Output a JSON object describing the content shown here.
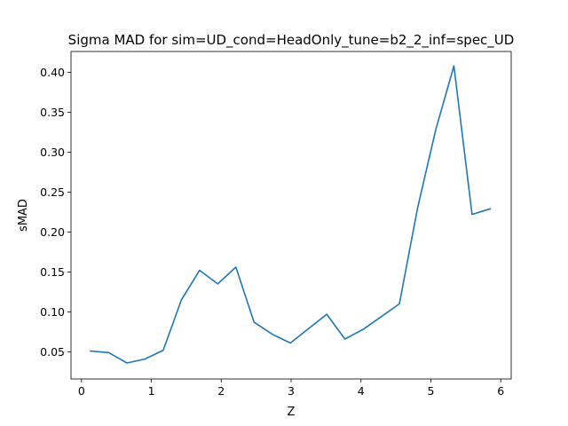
{
  "chart_data": {
    "type": "line",
    "title": "Sigma MAD for sim=UD_cond=HeadOnly_tune=b2_2_inf=spec_UD",
    "xlabel": "Z",
    "ylabel": "sMAD",
    "xlim": [
      -0.15,
      6.15
    ],
    "ylim": [
      0.016,
      0.426
    ],
    "grid": false,
    "xticks": [
      0,
      1,
      2,
      3,
      4,
      5,
      6
    ],
    "yticks": [
      0.05,
      0.1,
      0.15,
      0.2,
      0.25,
      0.3,
      0.35,
      0.4
    ],
    "xtick_labels": [
      "0",
      "1",
      "2",
      "3",
      "4",
      "5",
      "6"
    ],
    "ytick_labels": [
      "0.05",
      "0.10",
      "0.15",
      "0.20",
      "0.25",
      "0.30",
      "0.35",
      "0.40"
    ],
    "series": [
      {
        "color": "#1f77b4",
        "x": [
          0.13,
          0.39,
          0.65,
          0.91,
          1.17,
          1.43,
          1.69,
          1.95,
          2.21,
          2.47,
          2.73,
          2.99,
          3.25,
          3.51,
          3.77,
          4.03,
          4.29,
          4.55,
          4.81,
          5.07,
          5.33,
          5.59,
          5.85
        ],
        "values": [
          0.051,
          0.049,
          0.036,
          0.041,
          0.052,
          0.115,
          0.152,
          0.135,
          0.156,
          0.087,
          0.072,
          0.061,
          0.079,
          0.097,
          0.066,
          0.078,
          0.094,
          0.11,
          0.23,
          0.328,
          0.408,
          0.222,
          0.229
        ]
      }
    ]
  }
}
